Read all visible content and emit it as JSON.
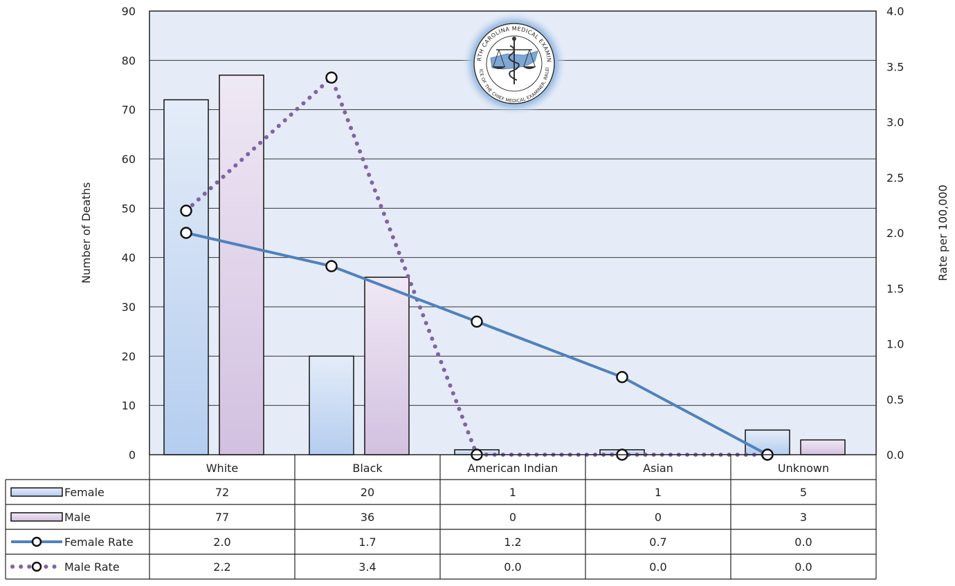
{
  "chart_data": {
    "type": "bar",
    "categories": [
      "White",
      "Black",
      "American Indian",
      "Asian",
      "Unknown"
    ],
    "series": [
      {
        "name": "Female",
        "kind": "bar",
        "axis": "left",
        "values": [
          72,
          20,
          1,
          1,
          5
        ],
        "color": "#bcd3ef"
      },
      {
        "name": "Male",
        "kind": "bar",
        "axis": "left",
        "values": [
          77,
          36,
          0,
          0,
          3
        ],
        "color": "#d6c6e3"
      },
      {
        "name": "Female Rate",
        "kind": "line",
        "axis": "right",
        "values": [
          2.0,
          1.7,
          1.2,
          0.7,
          0.0
        ],
        "color": "#4f81bd"
      },
      {
        "name": "Male Rate",
        "kind": "line",
        "axis": "right",
        "dotted": true,
        "values": [
          2.2,
          3.4,
          0.0,
          0.0,
          0.0
        ],
        "color": "#8064a2"
      }
    ],
    "table_values": [
      [
        "72",
        "20",
        "1",
        "1",
        "5"
      ],
      [
        "77",
        "36",
        "0",
        "0",
        "3"
      ],
      [
        "2.0",
        "1.7",
        "1.2",
        "0.7",
        "0.0"
      ],
      [
        "2.2",
        "3.4",
        "0.0",
        "0.0",
        "0.0"
      ]
    ],
    "ylabel": "Number of Deaths",
    "y2label": "Rate per 100,000",
    "ylim": [
      0,
      90
    ],
    "y2lim": [
      0,
      4.0
    ],
    "yticks": [
      "0",
      "10",
      "20",
      "30",
      "40",
      "50",
      "60",
      "70",
      "80",
      "90"
    ],
    "y2ticks": [
      "0.0",
      "0.5",
      "1.0",
      "1.5",
      "2.0",
      "2.5",
      "3.0",
      "3.5",
      "4.0"
    ],
    "grid": true,
    "legend": "data table below chart",
    "plot_background": "#e6ecf7"
  },
  "logo": {
    "name": "north-carolina-medical-examiner-seal",
    "text_top": "NORTH CAROLINA MEDICAL EXAMINER",
    "text_bottom": "OFFICE OF THE CHIEF MEDICAL EXAMINER, RALEIGH"
  }
}
